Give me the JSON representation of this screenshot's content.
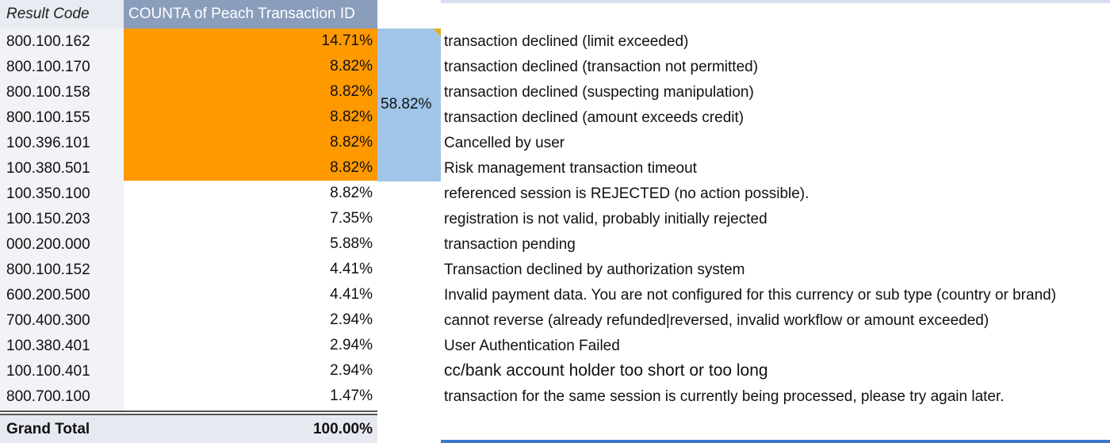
{
  "headers": {
    "result_code": "Result Code",
    "count": "COUNTA of Peach Transaction ID"
  },
  "group_total": "58.82%",
  "rows": [
    {
      "code": "800.100.162",
      "pct": "14.71%",
      "desc": "transaction declined (limit exceeded)",
      "highlight": true
    },
    {
      "code": "800.100.170",
      "pct": "8.82%",
      "desc": "transaction declined (transaction not permitted)",
      "highlight": true
    },
    {
      "code": "800.100.158",
      "pct": "8.82%",
      "desc": "transaction declined (suspecting manipulation)",
      "highlight": true
    },
    {
      "code": "800.100.155",
      "pct": "8.82%",
      "desc": "transaction declined (amount exceeds credit)",
      "highlight": true
    },
    {
      "code": "100.396.101",
      "pct": "8.82%",
      "desc": "Cancelled by user",
      "highlight": true
    },
    {
      "code": "100.380.501",
      "pct": "8.82%",
      "desc": "Risk management transaction timeout",
      "highlight": true
    },
    {
      "code": "100.350.100",
      "pct": "8.82%",
      "desc": "referenced session is REJECTED (no action possible).",
      "highlight": false
    },
    {
      "code": "100.150.203",
      "pct": "7.35%",
      "desc": "registration is not valid, probably initially rejected",
      "highlight": false
    },
    {
      "code": "000.200.000",
      "pct": "5.88%",
      "desc": "transaction pending",
      "highlight": false
    },
    {
      "code": "800.100.152",
      "pct": "4.41%",
      "desc": "Transaction declined by authorization system",
      "highlight": false
    },
    {
      "code": "600.200.500",
      "pct": "4.41%",
      "desc": "Invalid payment data. You are not configured for this currency or sub type (country or brand)",
      "highlight": false
    },
    {
      "code": "700.400.300",
      "pct": "2.94%",
      "desc": "cannot reverse (already refunded|reversed, invalid workflow or amount exceeded)",
      "highlight": false
    },
    {
      "code": "100.380.401",
      "pct": "2.94%",
      "desc": "User Authentication Failed",
      "highlight": false
    },
    {
      "code": "100.100.401",
      "pct": "2.94%",
      "desc": "cc/bank account holder too short or too long",
      "highlight": false,
      "large": true
    },
    {
      "code": "800.700.100",
      "pct": "1.47%",
      "desc": "transaction for the same session is currently being processed, please try again later.",
      "highlight": false
    }
  ],
  "grand_total": {
    "label": "Grand Total",
    "value": "100.00%"
  },
  "colors": {
    "highlight": "#ff9900",
    "group": "#a0c5e8",
    "header": "#8a9dbb"
  }
}
